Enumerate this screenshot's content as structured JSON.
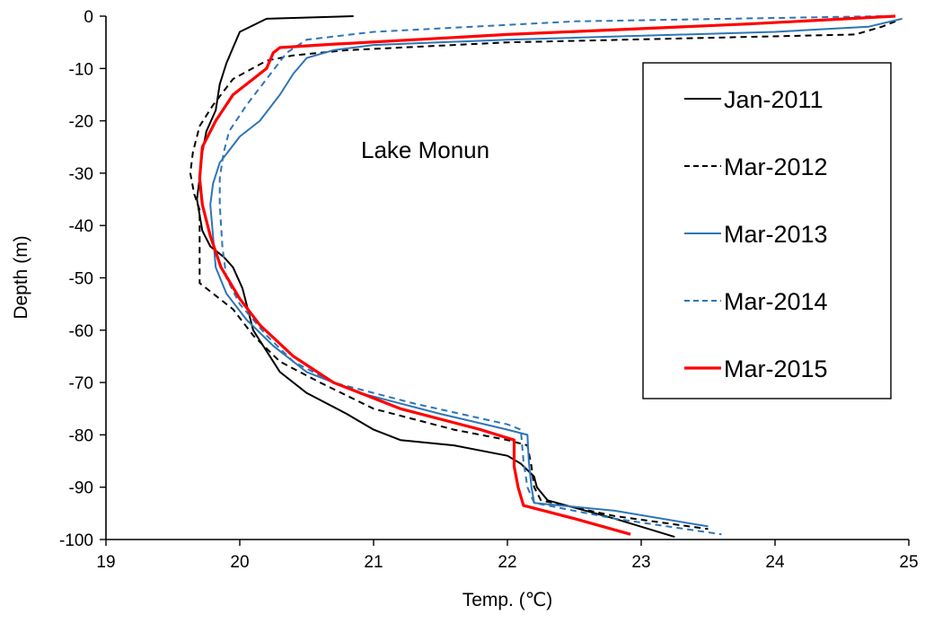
{
  "chart_data": {
    "type": "line",
    "annotation": "Lake Monun",
    "xlabel": "Temp. (℃)",
    "ylabel": "Depth (m)",
    "xlim": [
      19,
      25
    ],
    "ylim": [
      -100,
      0
    ],
    "xticks": [
      19,
      20,
      21,
      22,
      23,
      24,
      25
    ],
    "yticks": [
      0,
      -10,
      -20,
      -30,
      -40,
      -50,
      -60,
      -70,
      -80,
      -90,
      -100
    ],
    "grid": false,
    "legend_position": "right",
    "series": [
      {
        "name": "Jan-2011",
        "color": "#000000",
        "dash": "solid",
        "points": [
          [
            20.85,
            0
          ],
          [
            20.2,
            -0.5
          ],
          [
            20.0,
            -3
          ],
          [
            19.95,
            -6
          ],
          [
            19.9,
            -9
          ],
          [
            19.85,
            -13
          ],
          [
            19.82,
            -18
          ],
          [
            19.75,
            -22
          ],
          [
            19.72,
            -26
          ],
          [
            19.7,
            -31
          ],
          [
            19.68,
            -35
          ],
          [
            19.7,
            -38
          ],
          [
            19.72,
            -41
          ],
          [
            19.78,
            -44
          ],
          [
            19.88,
            -46
          ],
          [
            19.95,
            -48
          ],
          [
            20.02,
            -52
          ],
          [
            20.05,
            -55
          ],
          [
            20.1,
            -60
          ],
          [
            20.2,
            -64
          ],
          [
            20.3,
            -68
          ],
          [
            20.5,
            -72
          ],
          [
            20.8,
            -76
          ],
          [
            21.0,
            -79
          ],
          [
            21.2,
            -81
          ],
          [
            21.6,
            -82
          ],
          [
            22.0,
            -84
          ],
          [
            22.1,
            -85.5
          ],
          [
            22.2,
            -88
          ],
          [
            22.22,
            -90
          ],
          [
            22.3,
            -92.5
          ],
          [
            22.8,
            -96
          ],
          [
            23.25,
            -99.5
          ]
        ]
      },
      {
        "name": "Mar-2012",
        "color": "#000000",
        "dash": "dashed",
        "points": [
          [
            24.9,
            -1
          ],
          [
            24.8,
            -2
          ],
          [
            24.6,
            -3.5
          ],
          [
            22.0,
            -5
          ],
          [
            20.8,
            -6.5
          ],
          [
            20.4,
            -7.5
          ],
          [
            20.2,
            -8.5
          ],
          [
            19.95,
            -12
          ],
          [
            19.8,
            -17
          ],
          [
            19.7,
            -21
          ],
          [
            19.65,
            -26
          ],
          [
            19.63,
            -30
          ],
          [
            19.66,
            -34
          ],
          [
            19.7,
            -37
          ],
          [
            19.7,
            -45
          ],
          [
            19.7,
            -51
          ],
          [
            19.8,
            -53
          ],
          [
            19.95,
            -56
          ],
          [
            20.1,
            -61
          ],
          [
            20.3,
            -66
          ],
          [
            20.6,
            -70
          ],
          [
            21.0,
            -75
          ],
          [
            21.6,
            -79
          ],
          [
            22.0,
            -81
          ],
          [
            22.15,
            -82
          ],
          [
            22.18,
            -86
          ],
          [
            22.2,
            -90
          ],
          [
            22.25,
            -92.5
          ],
          [
            22.8,
            -95.5
          ],
          [
            23.5,
            -98
          ]
        ]
      },
      {
        "name": "Mar-2013",
        "color": "#2e75b6",
        "dash": "solid",
        "points": [
          [
            24.95,
            -0.5
          ],
          [
            24.7,
            -2
          ],
          [
            24.0,
            -3
          ],
          [
            22.0,
            -4.5
          ],
          [
            21.0,
            -5.5
          ],
          [
            20.7,
            -6.5
          ],
          [
            20.5,
            -8
          ],
          [
            20.4,
            -11
          ],
          [
            20.3,
            -15
          ],
          [
            20.15,
            -20
          ],
          [
            20.0,
            -23
          ],
          [
            19.85,
            -28
          ],
          [
            19.8,
            -32
          ],
          [
            19.78,
            -36
          ],
          [
            19.8,
            -42
          ],
          [
            19.82,
            -48
          ],
          [
            19.9,
            -53
          ],
          [
            20.05,
            -58
          ],
          [
            20.25,
            -63
          ],
          [
            20.5,
            -68
          ],
          [
            20.9,
            -72
          ],
          [
            21.5,
            -76
          ],
          [
            22.0,
            -79
          ],
          [
            22.15,
            -80
          ],
          [
            22.16,
            -85
          ],
          [
            22.18,
            -90
          ],
          [
            22.2,
            -93
          ],
          [
            22.8,
            -94.5
          ],
          [
            23.5,
            -97.5
          ]
        ]
      },
      {
        "name": "Mar-2014",
        "color": "#2e75b6",
        "dash": "dashed",
        "points": [
          [
            24.8,
            0
          ],
          [
            22.5,
            -1
          ],
          [
            21.0,
            -3
          ],
          [
            20.5,
            -4.5
          ],
          [
            20.35,
            -7
          ],
          [
            20.2,
            -12
          ],
          [
            20.05,
            -17
          ],
          [
            19.92,
            -22
          ],
          [
            19.88,
            -26
          ],
          [
            19.85,
            -31
          ],
          [
            19.85,
            -36
          ],
          [
            19.87,
            -44
          ],
          [
            19.9,
            -50
          ],
          [
            20.0,
            -55
          ],
          [
            20.2,
            -61
          ],
          [
            20.4,
            -66
          ],
          [
            20.7,
            -70
          ],
          [
            21.3,
            -74
          ],
          [
            22.0,
            -78
          ],
          [
            22.1,
            -79
          ],
          [
            22.12,
            -85
          ],
          [
            22.15,
            -90
          ],
          [
            22.2,
            -93
          ],
          [
            22.8,
            -96
          ],
          [
            23.6,
            -99
          ]
        ]
      },
      {
        "name": "Mar-2015",
        "color": "#ff0000",
        "dash": "solid",
        "points": [
          [
            24.9,
            0
          ],
          [
            23.8,
            -1.5
          ],
          [
            22.0,
            -3.5
          ],
          [
            20.6,
            -5.5
          ],
          [
            20.3,
            -6
          ],
          [
            20.25,
            -7
          ],
          [
            20.2,
            -10
          ],
          [
            20.1,
            -12
          ],
          [
            19.95,
            -15
          ],
          [
            19.82,
            -20
          ],
          [
            19.72,
            -25
          ],
          [
            19.7,
            -31
          ],
          [
            19.72,
            -36
          ],
          [
            19.78,
            -42
          ],
          [
            19.86,
            -48
          ],
          [
            20.0,
            -54
          ],
          [
            20.15,
            -59
          ],
          [
            20.4,
            -65
          ],
          [
            20.7,
            -70
          ],
          [
            21.2,
            -75
          ],
          [
            21.8,
            -79
          ],
          [
            22.05,
            -81
          ],
          [
            22.05,
            -86
          ],
          [
            22.08,
            -90
          ],
          [
            22.12,
            -93.5
          ],
          [
            22.5,
            -96
          ],
          [
            22.92,
            -99
          ]
        ]
      }
    ]
  }
}
